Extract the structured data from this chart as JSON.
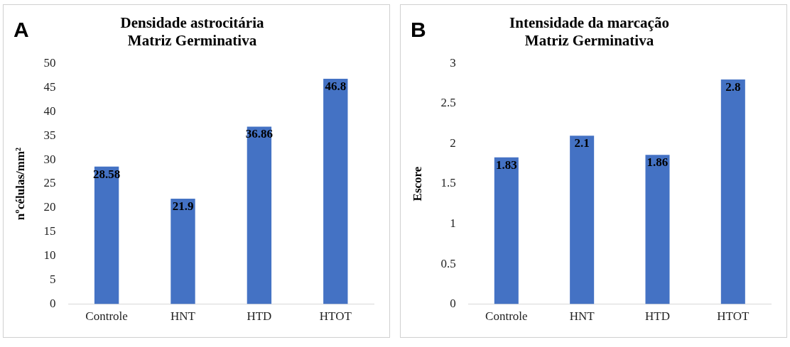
{
  "chart_data": [
    {
      "type": "bar",
      "title": "Densidade astrocitária\nMatriz Germinativa",
      "ylabel": "nºcélulas/mm²",
      "annotations": [
        "A"
      ],
      "categories": [
        "Controle",
        "HNT",
        "HTD",
        "HTOT"
      ],
      "values": [
        28.58,
        21.9,
        36.86,
        46.8
      ],
      "color": "#4472c4",
      "ylim": [
        0,
        50
      ],
      "yticks": [
        0,
        5,
        10,
        15,
        20,
        25,
        30,
        35,
        40,
        45,
        50
      ],
      "grid": false,
      "data_labels": true
    },
    {
      "type": "bar",
      "title": "Intensidade da marcação\nMatriz Germinativa",
      "ylabel": "Escore",
      "annotations": [
        "B"
      ],
      "categories": [
        "Controle",
        "HNT",
        "HTD",
        "HTOT"
      ],
      "values": [
        1.83,
        2.1,
        1.86,
        2.8
      ],
      "color": "#4472c4",
      "ylim": [
        0,
        3
      ],
      "yticks": [
        0,
        0.5,
        1,
        1.5,
        2,
        2.5,
        3
      ],
      "grid": false,
      "data_labels": true
    }
  ]
}
